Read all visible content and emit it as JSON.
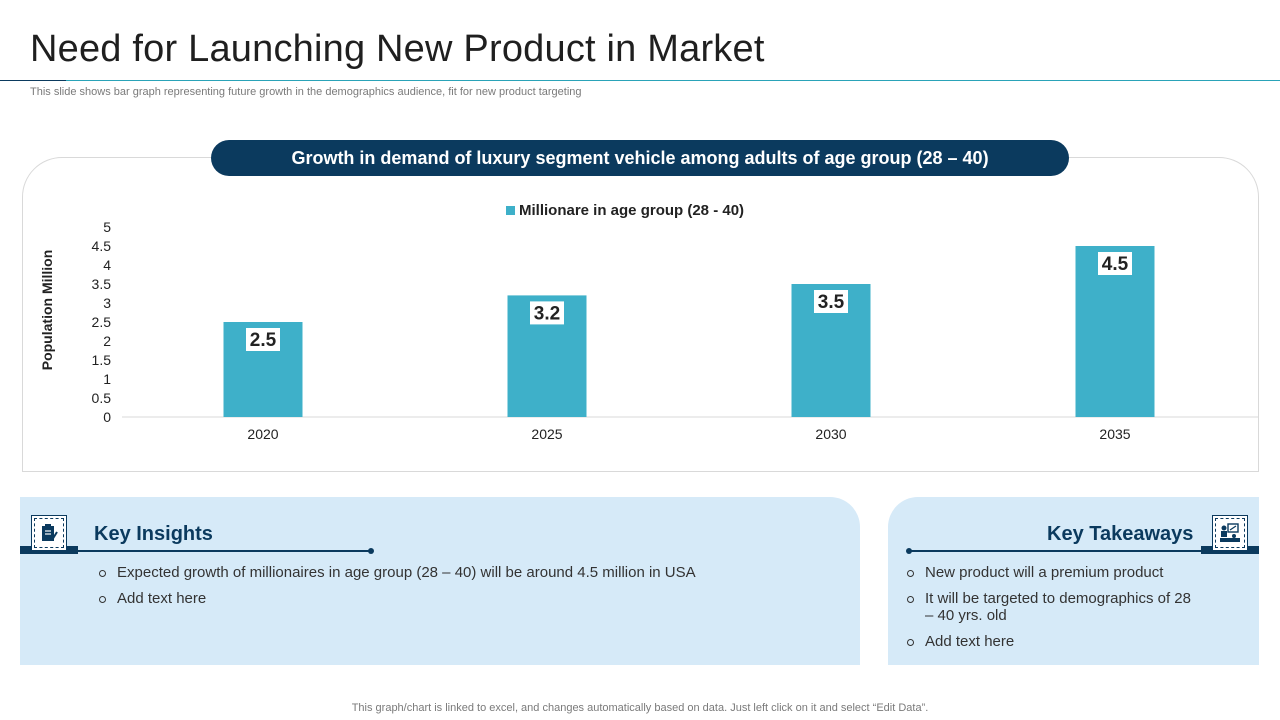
{
  "header": {
    "title": "Need for Launching New Product in Market",
    "subtitle": "This slide shows bar graph representing future growth in the demographics audience, fit for new product targeting"
  },
  "chart_banner": "Growth in demand of luxury segment vehicle among adults of age group (28 – 40)",
  "chart_data": {
    "type": "bar",
    "categories": [
      "2020",
      "2025",
      "2030",
      "2035"
    ],
    "series": [
      {
        "name": "Millionare in age group (28 - 40)",
        "values": [
          2.5,
          3.2,
          3.5,
          4.5
        ],
        "color": "#3eb0c9"
      }
    ],
    "ylabel": "Population  Million",
    "ylim": [
      0,
      5
    ],
    "yticks": [
      "0",
      "0.5",
      "1",
      "1.5",
      "2",
      "2.5",
      "3",
      "3.5",
      "4",
      "4.5",
      "5"
    ],
    "data_labels": [
      "2.5",
      "3.2",
      "3.5",
      "4.5"
    ],
    "legend_position": "top",
    "grid": false
  },
  "insights": {
    "heading": "Key Insights",
    "icon": "clipboard-pen-icon",
    "items": [
      "Expected growth of millionaires in age group (28 – 40) will be around 4.5 million in USA",
      "Add text here"
    ]
  },
  "takeaways": {
    "heading": "Key Takeaways",
    "icon": "people-presentation-icon",
    "items": [
      "New product will a premium product",
      "It will be targeted to demographics of 28 – 40 yrs. old",
      "Add text here"
    ]
  },
  "footnote": "This graph/chart is linked to excel,  and changes automatically based on data. Just left click on it and select “Edit Data”.",
  "colors": {
    "navy": "#0b3a5e",
    "teal": "#3eb0c9",
    "light_blue": "#d6eaf8"
  }
}
